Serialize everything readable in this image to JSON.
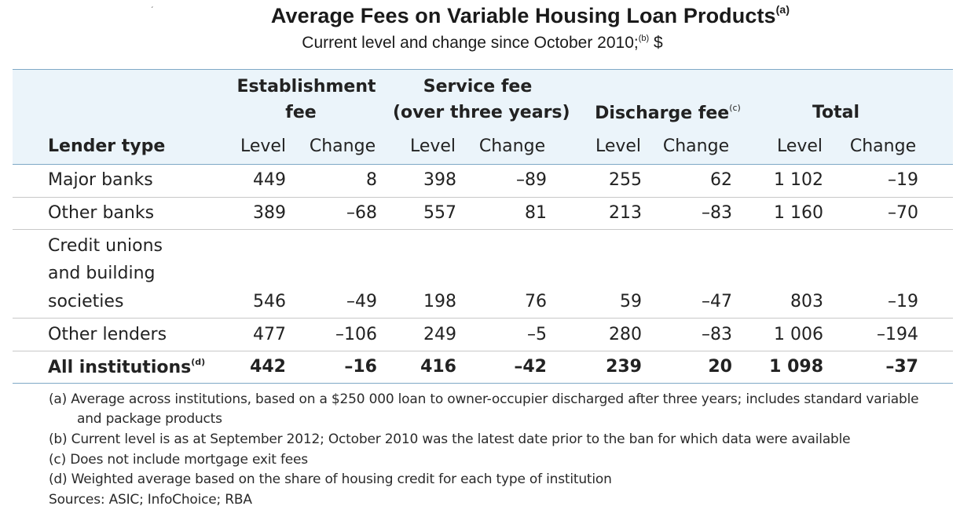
{
  "title": "Average Fees on Variable Housing Loan Products",
  "title_note": "(a)",
  "subtitle_before": "Current level and change since October 2010;",
  "subtitle_note": "(b)",
  "subtitle_after": " $",
  "header": {
    "lender_type": "Lender type",
    "groups": [
      {
        "line1": "Establishment",
        "line2": "fee",
        "note": ""
      },
      {
        "line1": "Service fee",
        "line2": "(over three years)",
        "note": ""
      },
      {
        "line1": "",
        "line2": "Discharge fee",
        "note": "(c)"
      },
      {
        "line1": "",
        "line2": "Total",
        "note": ""
      }
    ],
    "level": "Level",
    "change": "Change"
  },
  "rows": [
    {
      "label": "Major banks",
      "values": [
        "449",
        "8",
        "398",
        "–89",
        "255",
        "62",
        "1 102",
        "–19"
      ]
    },
    {
      "label": "Other banks",
      "values": [
        "389",
        "–68",
        "557",
        "81",
        "213",
        "–83",
        "1 160",
        "–70"
      ]
    },
    {
      "label_lines": [
        "Credit unions",
        "and building",
        "societies"
      ],
      "values": [
        "546",
        "–49",
        "198",
        "76",
        "59",
        "–47",
        "803",
        "–19"
      ]
    },
    {
      "label": "Other lenders",
      "values": [
        "477",
        "–106",
        "249",
        "–5",
        "280",
        "–83",
        "1 006",
        "–194"
      ]
    }
  ],
  "total_row": {
    "label": "All institutions",
    "note": "(d)",
    "values": [
      "442",
      "–16",
      "416",
      "–42",
      "239",
      "20",
      "1 098",
      "–37"
    ]
  },
  "footnotes": [
    "(a) Average across institutions, based on a $250 000 loan to owner-occupier discharged after three years; includes standard variable",
    "and package products",
    "(b) Current level is as at September 2012; October 2010 was the latest date prior to the ban for which data were available",
    "(c) Does not include mortgage exit fees",
    "(d) Weighted average based on the share of housing credit for each type of institution",
    "Sources: ASIC; InfoChoice; RBA"
  ],
  "colors": {
    "header_band": "#ebf4fa",
    "rule": "#7fa9c6"
  }
}
